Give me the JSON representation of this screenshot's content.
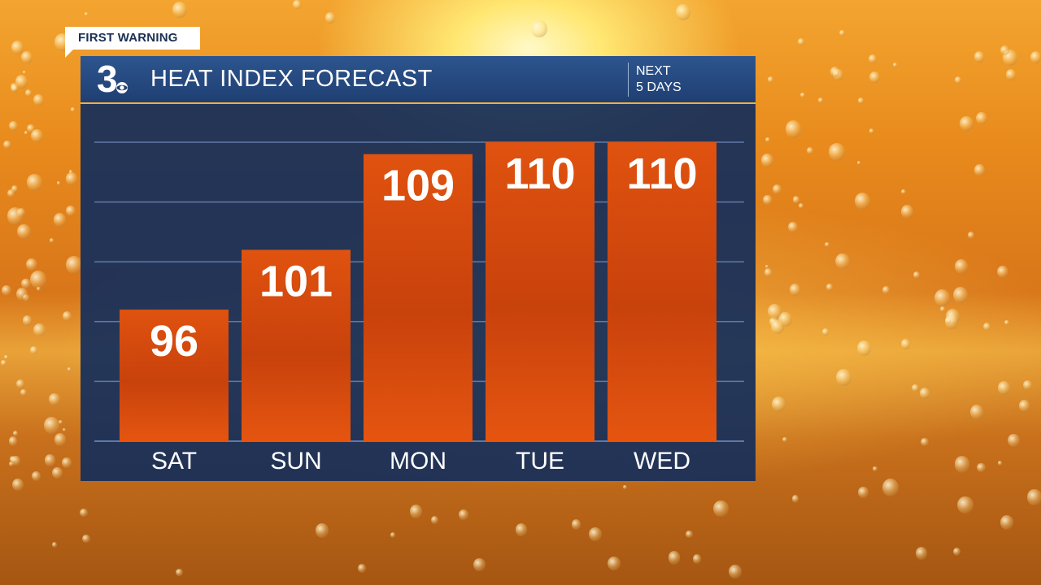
{
  "badge": {
    "label": "FIRST WARNING"
  },
  "header": {
    "logo_text": "3",
    "title": "HEAT INDEX FORECAST",
    "subtitle_line1": "NEXT",
    "subtitle_line2": "5 DAYS"
  },
  "colors": {
    "bar_fill": "#d9480d",
    "panel_bg": "#1b3566",
    "accent": "#f2b13b"
  },
  "chart_data": {
    "type": "bar",
    "title": "HEAT INDEX FORECAST",
    "categories": [
      "SAT",
      "SUN",
      "MON",
      "TUE",
      "WED"
    ],
    "values": [
      96,
      101,
      109,
      110,
      110
    ],
    "data_labels": [
      "96",
      "101",
      "109",
      "110",
      "110"
    ],
    "ylim": [
      85,
      110
    ],
    "grid": true,
    "legend": "none"
  }
}
